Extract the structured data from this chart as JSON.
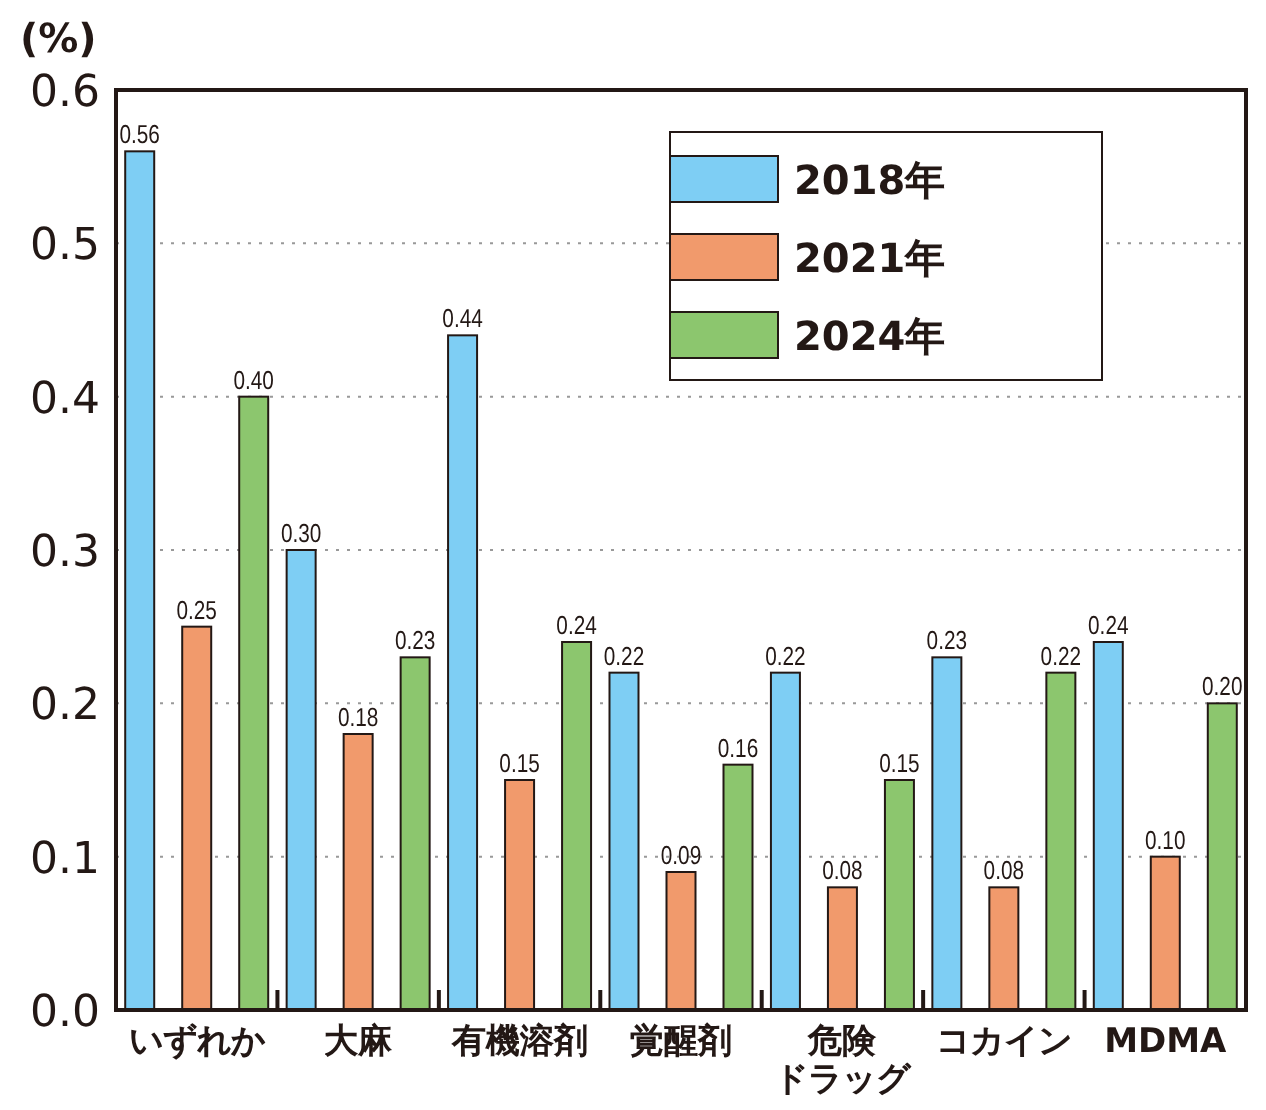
{
  "chart_data": {
    "type": "bar",
    "ylabel": "(%)",
    "categories": [
      "いずれか",
      "大麻",
      "有機溶剤",
      "覚醒剤",
      "危険ドラッグ",
      "コカイン",
      "MDMA"
    ],
    "series": [
      {
        "name": "2018年",
        "color": "#7ecef4",
        "values": [
          0.56,
          0.3,
          0.44,
          0.22,
          0.22,
          0.23,
          0.24
        ],
        "value_labels": [
          "0.56",
          "0.30",
          "0.44",
          "0.22",
          "0.22",
          "0.23",
          "0.24"
        ]
      },
      {
        "name": "2021年",
        "color": "#f19a6c",
        "values": [
          0.25,
          0.18,
          0.15,
          0.09,
          0.08,
          0.08,
          0.1
        ],
        "value_labels": [
          "0.25",
          "0.18",
          "0.15",
          "0.09",
          "0.08",
          "0.08",
          "0.10"
        ]
      },
      {
        "name": "2024年",
        "color": "#8cc66e",
        "values": [
          0.4,
          0.23,
          0.24,
          0.16,
          0.15,
          0.22,
          0.2
        ],
        "value_labels": [
          "0.40",
          "0.23",
          "0.24",
          "0.16",
          "0.15",
          "0.22",
          "0.20"
        ]
      }
    ],
    "ylim": [
      0,
      0.6
    ],
    "yticks": [
      {
        "value": 0,
        "label": "0.0"
      },
      0.1,
      0.2,
      0.3,
      0.4,
      0.5,
      0.6
    ],
    "grid": "y",
    "legend": "top right"
  }
}
